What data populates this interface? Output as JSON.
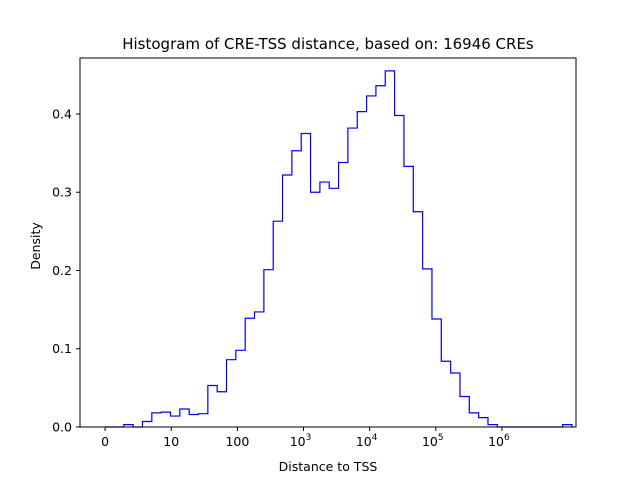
{
  "chart_data": {
    "type": "histogram",
    "title": "Histogram of CRE-TSS distance, based on: 16946 CREs",
    "xlabel": "Distance to TSS",
    "ylabel": "Density",
    "x_scale": "log1p",
    "xlim": [
      -0.38,
      7.12
    ],
    "ylim": [
      0,
      0.4715
    ],
    "x_ticks": [
      {
        "value": 0,
        "label": "0"
      },
      {
        "value": 1,
        "label": "10"
      },
      {
        "value": 2,
        "label": "100"
      },
      {
        "value": 3,
        "label": "10",
        "sup": "3"
      },
      {
        "value": 4,
        "label": "10",
        "sup": "4"
      },
      {
        "value": 5,
        "label": "10",
        "sup": "5"
      },
      {
        "value": 6,
        "label": "10",
        "sup": "6"
      }
    ],
    "y_ticks": [
      {
        "value": 0.0,
        "label": "0.0"
      },
      {
        "value": 0.1,
        "label": "0.1"
      },
      {
        "value": 0.2,
        "label": "0.2"
      },
      {
        "value": 0.3,
        "label": "0.3"
      },
      {
        "value": 0.4,
        "label": "0.4"
      }
    ],
    "bin_edges": [
      0.0,
      0.1412,
      0.2824,
      0.4236,
      0.5648,
      0.706,
      0.8472,
      0.9884,
      1.1296,
      1.2708,
      1.412,
      1.5532,
      1.6944,
      1.8356,
      1.9768,
      2.118,
      2.2592,
      2.4004,
      2.5416,
      2.6828,
      2.824,
      2.9652,
      3.1064,
      3.2476,
      3.3888,
      3.53,
      3.6712,
      3.8124,
      3.9536,
      4.0948,
      4.236,
      4.3772,
      4.5184,
      4.6596,
      4.8008,
      4.942,
      5.0832,
      5.2244,
      5.3656,
      5.5068,
      5.648,
      5.7892,
      5.9304,
      6.0716,
      6.2128,
      6.354,
      6.4952,
      6.6364,
      6.7776,
      6.9188,
      7.06
    ],
    "densities": [
      0.0,
      0.0,
      0.003,
      0.0,
      0.007,
      0.018,
      0.019,
      0.014,
      0.023,
      0.016,
      0.017,
      0.053,
      0.045,
      0.086,
      0.098,
      0.139,
      0.147,
      0.201,
      0.263,
      0.322,
      0.353,
      0.375,
      0.3,
      0.313,
      0.305,
      0.338,
      0.382,
      0.403,
      0.423,
      0.436,
      0.455,
      0.398,
      0.333,
      0.275,
      0.202,
      0.138,
      0.084,
      0.069,
      0.039,
      0.018,
      0.012,
      0.003,
      0.0,
      0.0,
      0.0,
      0.0,
      0.0,
      0.0,
      0.0,
      0.003
    ],
    "line_color": "#0000ff",
    "grid": false,
    "legend": "none"
  }
}
